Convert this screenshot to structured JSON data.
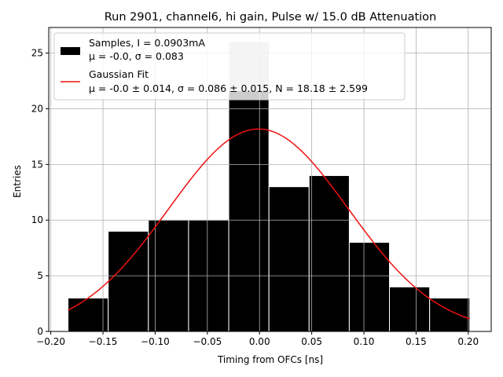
{
  "chart_data": {
    "type": "bar",
    "title": "Run 2901, channel6, hi gain, Pulse w/ 15.0 dB Attenuation",
    "xlabel": "Timing from OFCs [ns]",
    "ylabel": "Entries",
    "xlim": [
      -0.202,
      0.222
    ],
    "ylim": [
      0,
      27.3
    ],
    "x_ticks": [
      -0.2,
      -0.15,
      -0.1,
      -0.05,
      0.0,
      0.05,
      0.1,
      0.15,
      0.2
    ],
    "x_tick_labels": [
      "−0.20",
      "−0.15",
      "−0.10",
      "−0.05",
      "0.00",
      "0.05",
      "0.10",
      "0.15",
      "0.20"
    ],
    "y_ticks": [
      0,
      5,
      10,
      15,
      20,
      25
    ],
    "y_tick_labels": [
      "0",
      "5",
      "10",
      "15",
      "20",
      "25"
    ],
    "grid": true,
    "legend_position": "top-left",
    "histogram": {
      "name": "Samples, I = 0.0903mA",
      "stats_line": "μ = -0.0, σ = 0.083",
      "color": "#000000",
      "highlight_color": "#c8c8c8",
      "bin_edges": [
        -0.1835,
        -0.145,
        -0.1065,
        -0.068,
        -0.0295,
        0.009,
        0.0475,
        0.086,
        0.1245,
        0.163,
        0.2015
      ],
      "counts": [
        3,
        9,
        10,
        10,
        26,
        13,
        14,
        8,
        4,
        3
      ]
    },
    "fit": {
      "name": "Gaussian Fit",
      "params_line": "μ = -0.0 ± 0.014, σ = 0.086 ± 0.015, N = 18.18 ± 2.599",
      "color": "#ee1111",
      "mu": -0.001,
      "sigma": 0.086,
      "amplitude": 18.18,
      "x_range": [
        -0.1835,
        0.2015
      ]
    }
  }
}
